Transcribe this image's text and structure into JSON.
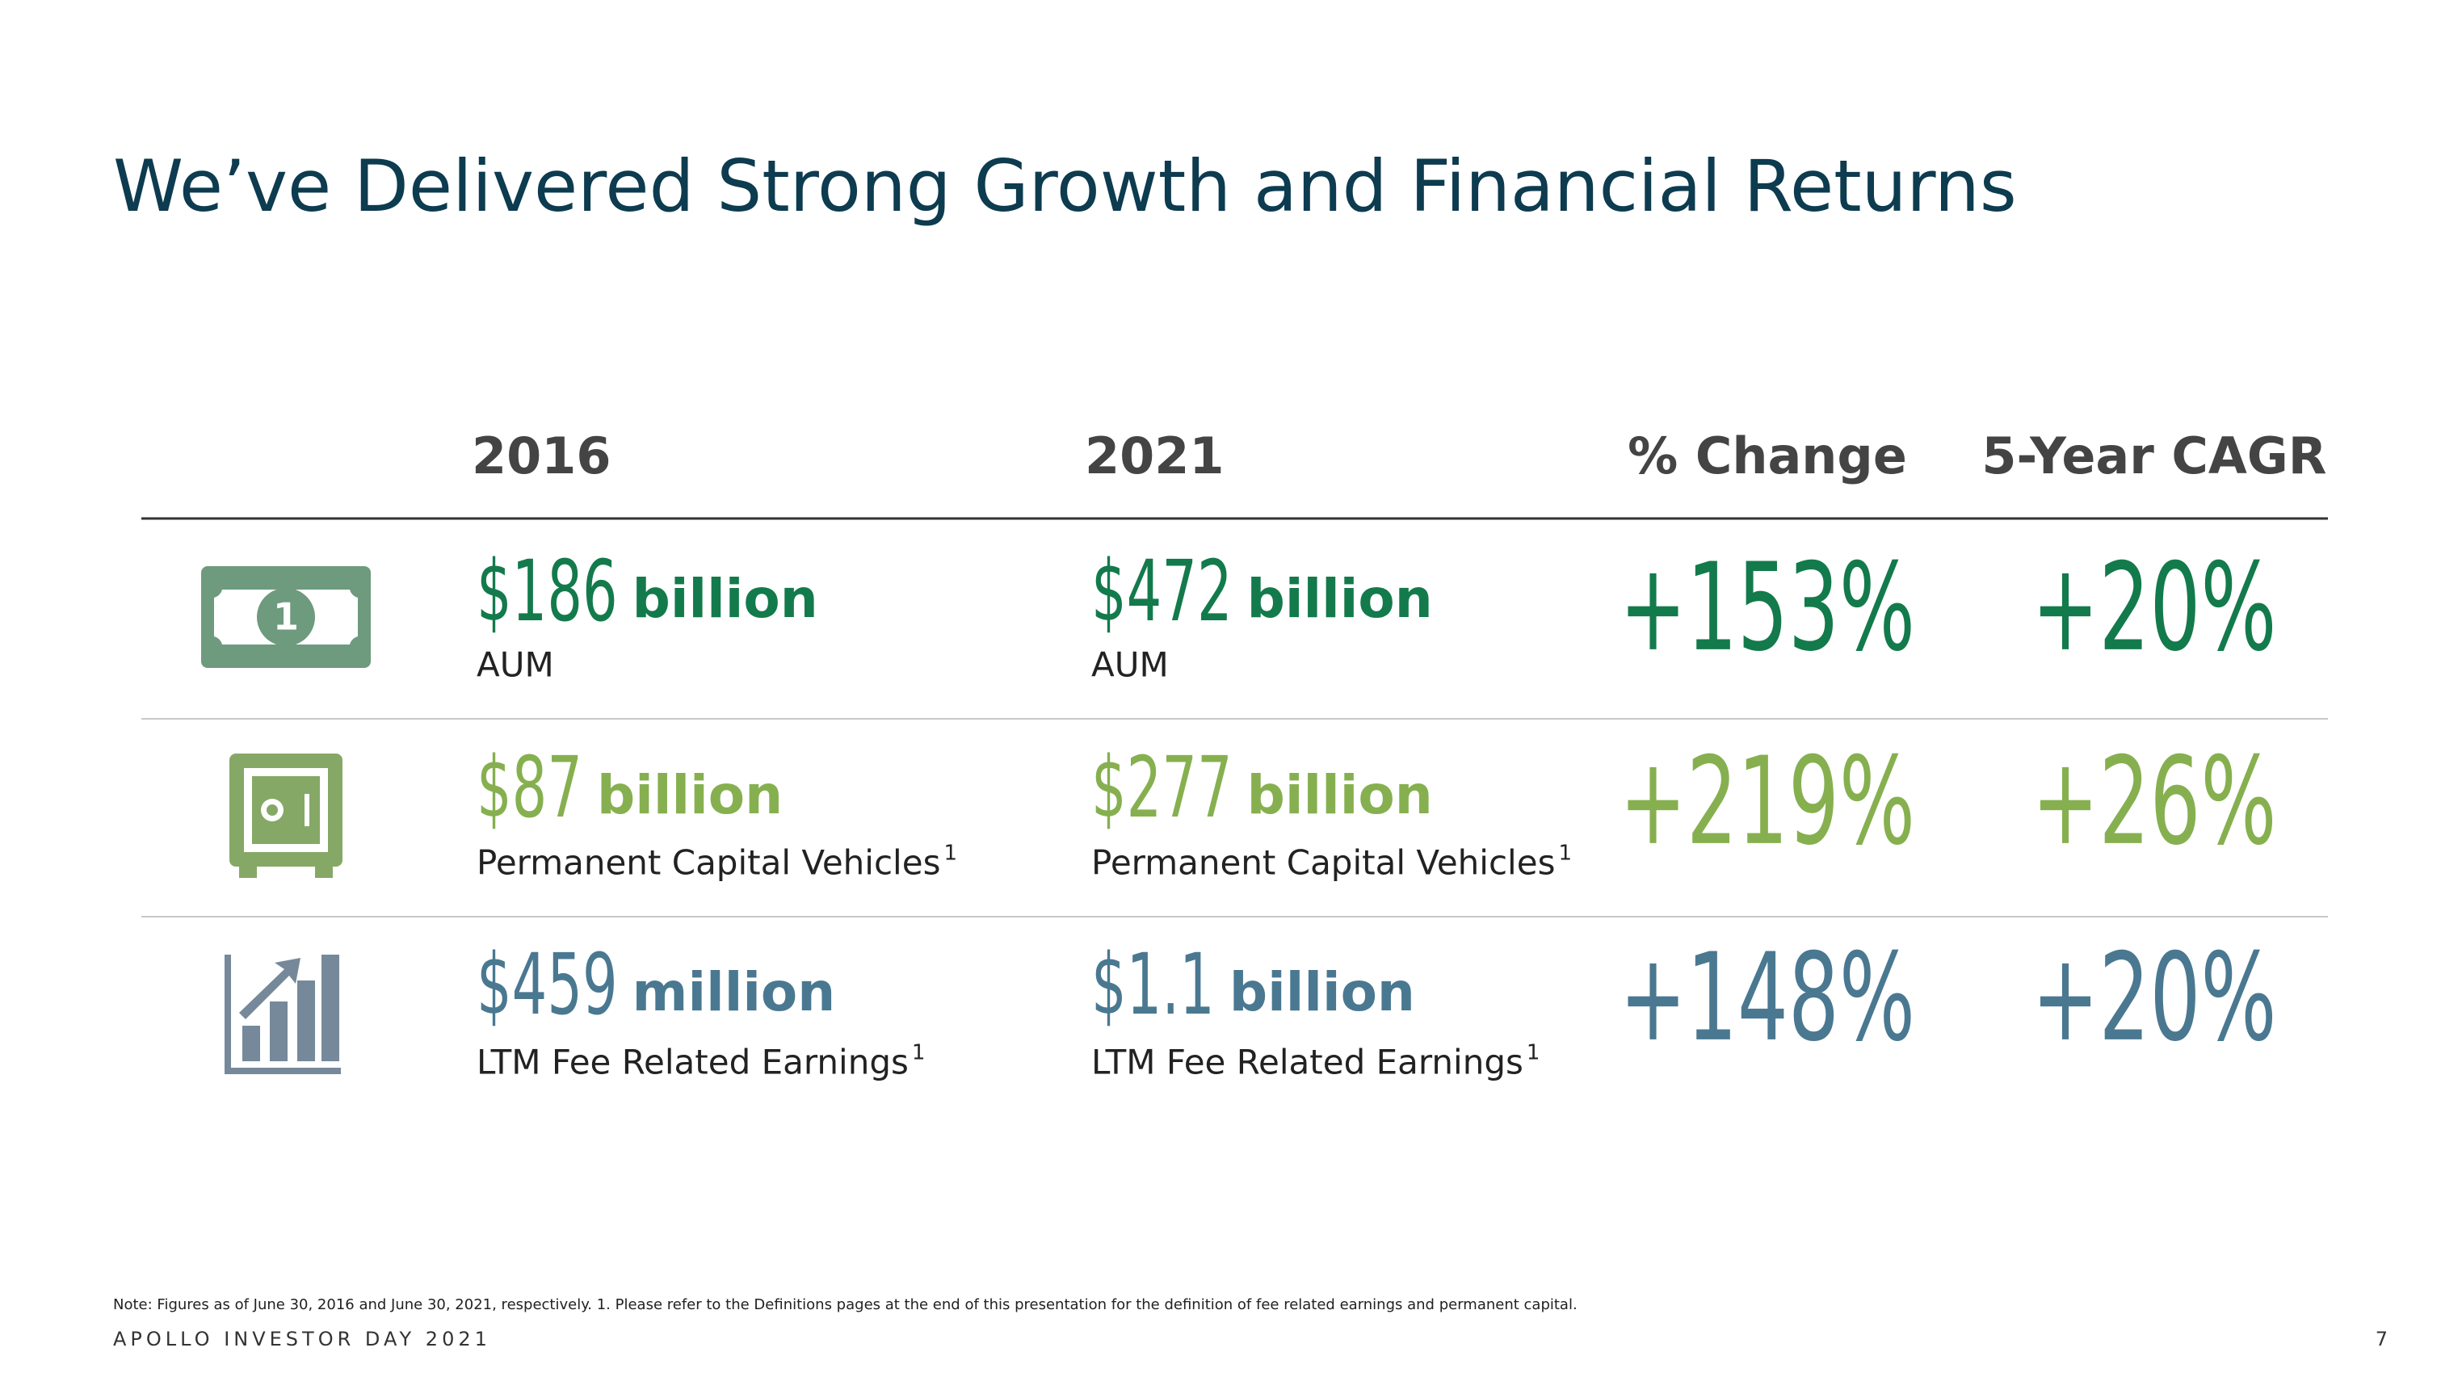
{
  "header": {
    "title": "We’ve Delivered Strong Growth and Financial Returns"
  },
  "table": {
    "columns": [
      "2016",
      "2021",
      "% Change",
      "5-Year CAGR"
    ],
    "rows": [
      {
        "color": "#137a4c",
        "y2016": {
          "amount": "$186",
          "unit": "billion",
          "label": "AUM"
        },
        "y2021": {
          "amount": "$472",
          "unit": "billion",
          "label": "AUM"
        },
        "change": "+153%",
        "cagr": "+20%"
      },
      {
        "color": "#86b04f",
        "y2016": {
          "amount": "$87",
          "unit": "billion",
          "label": "Permanent Capital Vehicles",
          "footnote": "1"
        },
        "y2021": {
          "amount": "$277",
          "unit": "billion",
          "label": "Permanent Capital Vehicles",
          "footnote": "1"
        },
        "change": "+219%",
        "cagr": "+26%"
      },
      {
        "color": "#4a7891",
        "y2016": {
          "amount": "$459",
          "unit": "million",
          "label": "LTM Fee Related Earnings",
          "footnote": "1"
        },
        "y2021": {
          "amount": "$1.1",
          "unit": "billion",
          "label": "LTM Fee Related Earnings",
          "footnote": "1"
        },
        "change": "+148%",
        "cagr": "+20%"
      }
    ]
  },
  "note": "Note: Figures as of June 30, 2016 and June 30, 2021, respectively. 1. Please refer to the Definitions pages at the end of this presentation for the definition of fee related earnings and permanent capital.",
  "footer": {
    "brand": "APOLLO INVESTOR DAY 2021",
    "page": "7"
  }
}
